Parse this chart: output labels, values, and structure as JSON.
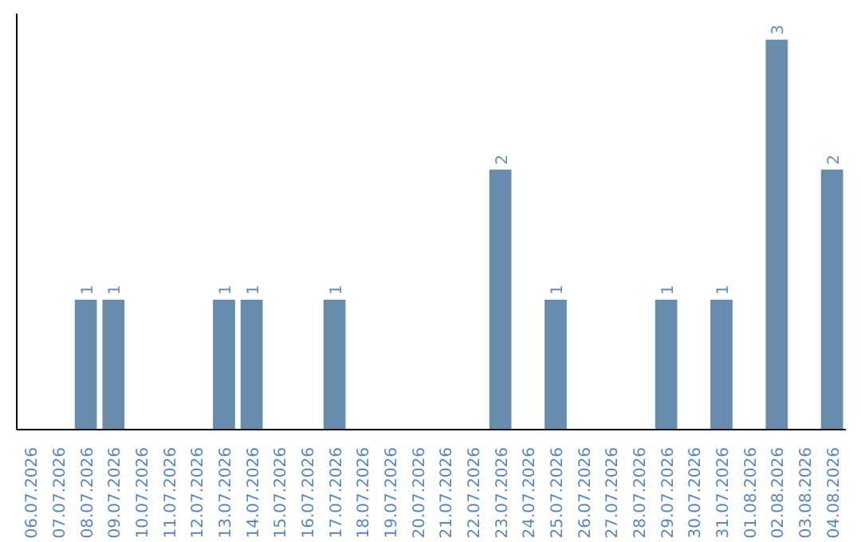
{
  "chart_data": {
    "type": "bar",
    "categories": [
      "06.07.2026",
      "07.07.2026",
      "08.07.2026",
      "09.07.2026",
      "10.07.2026",
      "11.07.2026",
      "12.07.2026",
      "13.07.2026",
      "14.07.2026",
      "15.07.2026",
      "16.07.2026",
      "17.07.2026",
      "18.07.2026",
      "19.07.2026",
      "20.07.2026",
      "21.07.2026",
      "22.07.2026",
      "23.07.2026",
      "24.07.2026",
      "25.07.2026",
      "26.07.2026",
      "27.07.2026",
      "28.07.2026",
      "29.07.2026",
      "30.07.2026",
      "31.07.2026",
      "01.08.2026",
      "02.08.2026",
      "03.08.2026",
      "04.08.2026"
    ],
    "values": [
      0,
      0,
      1,
      1,
      0,
      0,
      0,
      1,
      1,
      0,
      0,
      1,
      0,
      0,
      0,
      0,
      0,
      2,
      0,
      1,
      0,
      0,
      0,
      1,
      0,
      1,
      0,
      3,
      0,
      2
    ],
    "value_labels": [
      null,
      null,
      "1",
      "1",
      null,
      null,
      null,
      "1",
      "1",
      null,
      null,
      "1",
      null,
      null,
      null,
      null,
      null,
      "2",
      null,
      "1",
      null,
      null,
      null,
      "1",
      null,
      "1",
      null,
      "3",
      null,
      "2"
    ],
    "color": "#6a8caf",
    "ylim": [
      0,
      3.2
    ],
    "tick_labels": "x",
    "grid": false
  }
}
